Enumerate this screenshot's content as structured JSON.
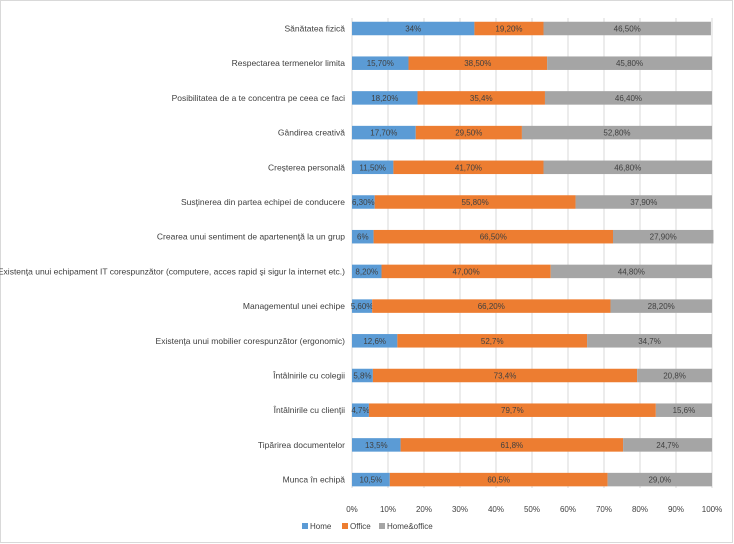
{
  "chart_data": {
    "type": "bar",
    "orientation": "horizontal",
    "stacked": "percent",
    "categories": [
      "Sănătatea fizică",
      "Respectarea termenelor limita",
      "Posibilitatea de a te concentra pe ceea ce faci",
      "Gândirea creativă",
      "Creşterea personală",
      "Susţinerea din partea echipei de conducere",
      "Crearea unui sentiment de apartenenţă la un grup",
      "Existenţa unui echipament IT corespunzător (computere, acces rapid şi sigur la internet etc.)",
      "Managementul unei echipe",
      "Existenţa unui mobilier corespunzător (ergonomic)",
      "Întâlnirile cu colegii",
      "Întâlnirile cu clienţii",
      "Tipărirea documentelor",
      "Munca în echipă"
    ],
    "series": [
      {
        "name": "Home",
        "color": "#5b9bd5",
        "values": [
          34,
          15.7,
          18.2,
          17.7,
          11.5,
          6.3,
          6,
          8.2,
          5.6,
          12.6,
          5.8,
          4.7,
          13.5,
          10.5
        ],
        "labels": [
          "34%",
          "15,70%",
          "18,20%",
          "17,70%",
          "11,50%",
          "6,30%",
          "6%",
          "8,20%",
          "5,60%",
          "12,6%",
          "5,8%",
          "4,7%",
          "13,5%",
          "10,5%"
        ]
      },
      {
        "name": "Office",
        "color": "#ed7d31",
        "values": [
          19.2,
          38.5,
          35.4,
          29.5,
          41.7,
          55.8,
          66.5,
          47,
          66.2,
          52.7,
          73.4,
          79.7,
          61.8,
          60.5
        ],
        "labels": [
          "19,20%",
          "38,50%",
          "35,4%",
          "29,50%",
          "41,70%",
          "55,80%",
          "66,50%",
          "47,00%",
          "66,20%",
          "52,7%",
          "73,4%",
          "79,7%",
          "61,8%",
          "60,5%"
        ]
      },
      {
        "name": "Home&office",
        "color": "#a5a5a5",
        "values": [
          46.5,
          45.8,
          46.4,
          52.8,
          46.8,
          37.9,
          27.9,
          44.8,
          28.2,
          34.7,
          20.8,
          15.6,
          24.7,
          29
        ],
        "labels": [
          "46,50%",
          "45,80%",
          "46,40%",
          "52,80%",
          "46,80%",
          "37,90%",
          "27,90%",
          "44,80%",
          "28,20%",
          "34,7%",
          "20,8%",
          "15,6%",
          "24,7%",
          "29,0%"
        ]
      }
    ],
    "xticks": [
      "0%",
      "10%",
      "20%",
      "30%",
      "40%",
      "50%",
      "60%",
      "70%",
      "80%",
      "90%",
      "100%"
    ],
    "xlim": [
      0,
      100
    ],
    "grid": true,
    "legend": "bottom"
  }
}
